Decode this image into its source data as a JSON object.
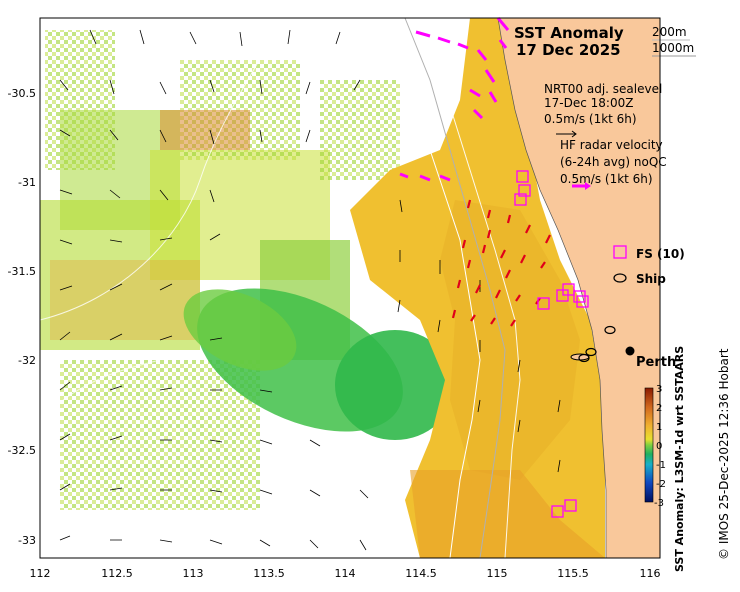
{
  "title": {
    "line1": "SST Anomaly",
    "line2": "17 Dec 2025"
  },
  "isobath_legend": {
    "shallow": "200m",
    "deep": "1000m"
  },
  "altimetry_legend": {
    "line1": "NRT00 adj. sealevel",
    "line2": "17-Dec 18:00Z",
    "line3": "0.5m/s (1kt 6h)"
  },
  "radar_legend": {
    "line1": "HF radar velocity",
    "line2": "(6-24h avg) noQC",
    "line3": "0.5m/s (1kt 6h)"
  },
  "markers": {
    "fs_label": "FS (10)",
    "ship_label": "Ship",
    "city_label": "Perth"
  },
  "colorbar": {
    "label": "SST Anomaly: L3SM-1d wrt SSTAARS",
    "ticks": [
      "3",
      "2",
      "1",
      "0",
      "-1",
      "-2",
      "-3"
    ],
    "colors": [
      "#8b1a00",
      "#d2691e",
      "#e6a23c",
      "#f0d030",
      "#c8e030",
      "#5cc83c",
      "#18a8c8",
      "#1060c0",
      "#001880"
    ]
  },
  "credit": "© IMOS 25-Dec-2025 12:36 Hobart",
  "axes": {
    "x_ticks": [
      "112",
      "112.5",
      "113",
      "113.5",
      "114",
      "114.5",
      "115",
      "115.5",
      "116"
    ],
    "y_ticks": [
      "-30.5",
      "-31",
      "-31.5",
      "-32",
      "-32.5",
      "-33"
    ]
  },
  "colors": {
    "land": "#f9c89b",
    "ship_track": "#ff00ff",
    "radar_vectors": "#e0001a",
    "fs_box": "#ff00ff"
  }
}
